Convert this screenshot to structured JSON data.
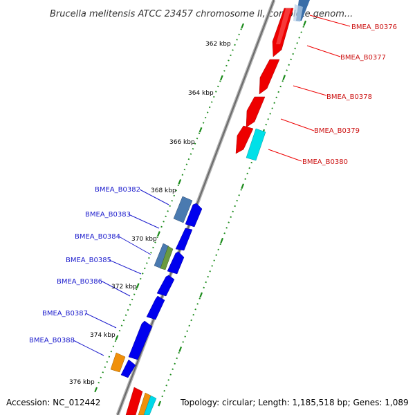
{
  "title": "Brucella melitensis ATCC 23457 chromosome II, complete genom...",
  "footer": {
    "accession": "Accession: NC_012442",
    "topology": "Topology: circular; Length: 1,185,518 bp; Genes: 1,089"
  },
  "colors": {
    "forward_gene": "#0000ee",
    "reverse_gene": "#ee0000",
    "forward_label": "#1a1acc",
    "reverse_label": "#cc1111",
    "tick_marks": "#1a8a1a",
    "backbone": "#888888"
  },
  "ticks": [
    "362 kbp",
    "364 kbp",
    "366 kbp",
    "368 kbp",
    "370 kbp",
    "372 kbp",
    "374 kbp",
    "376 kbp"
  ],
  "genes_reverse": [
    "BMEA_B0376",
    "BMEA_B0377",
    "BMEA_B0378",
    "BMEA_B0379",
    "BMEA_B0380"
  ],
  "genes_forward": [
    "BMEA_B0382",
    "BMEA_B0383",
    "BMEA_B0384",
    "BMEA_B0385",
    "BMEA_B0386",
    "BMEA_B0387",
    "BMEA_B0388"
  ]
}
